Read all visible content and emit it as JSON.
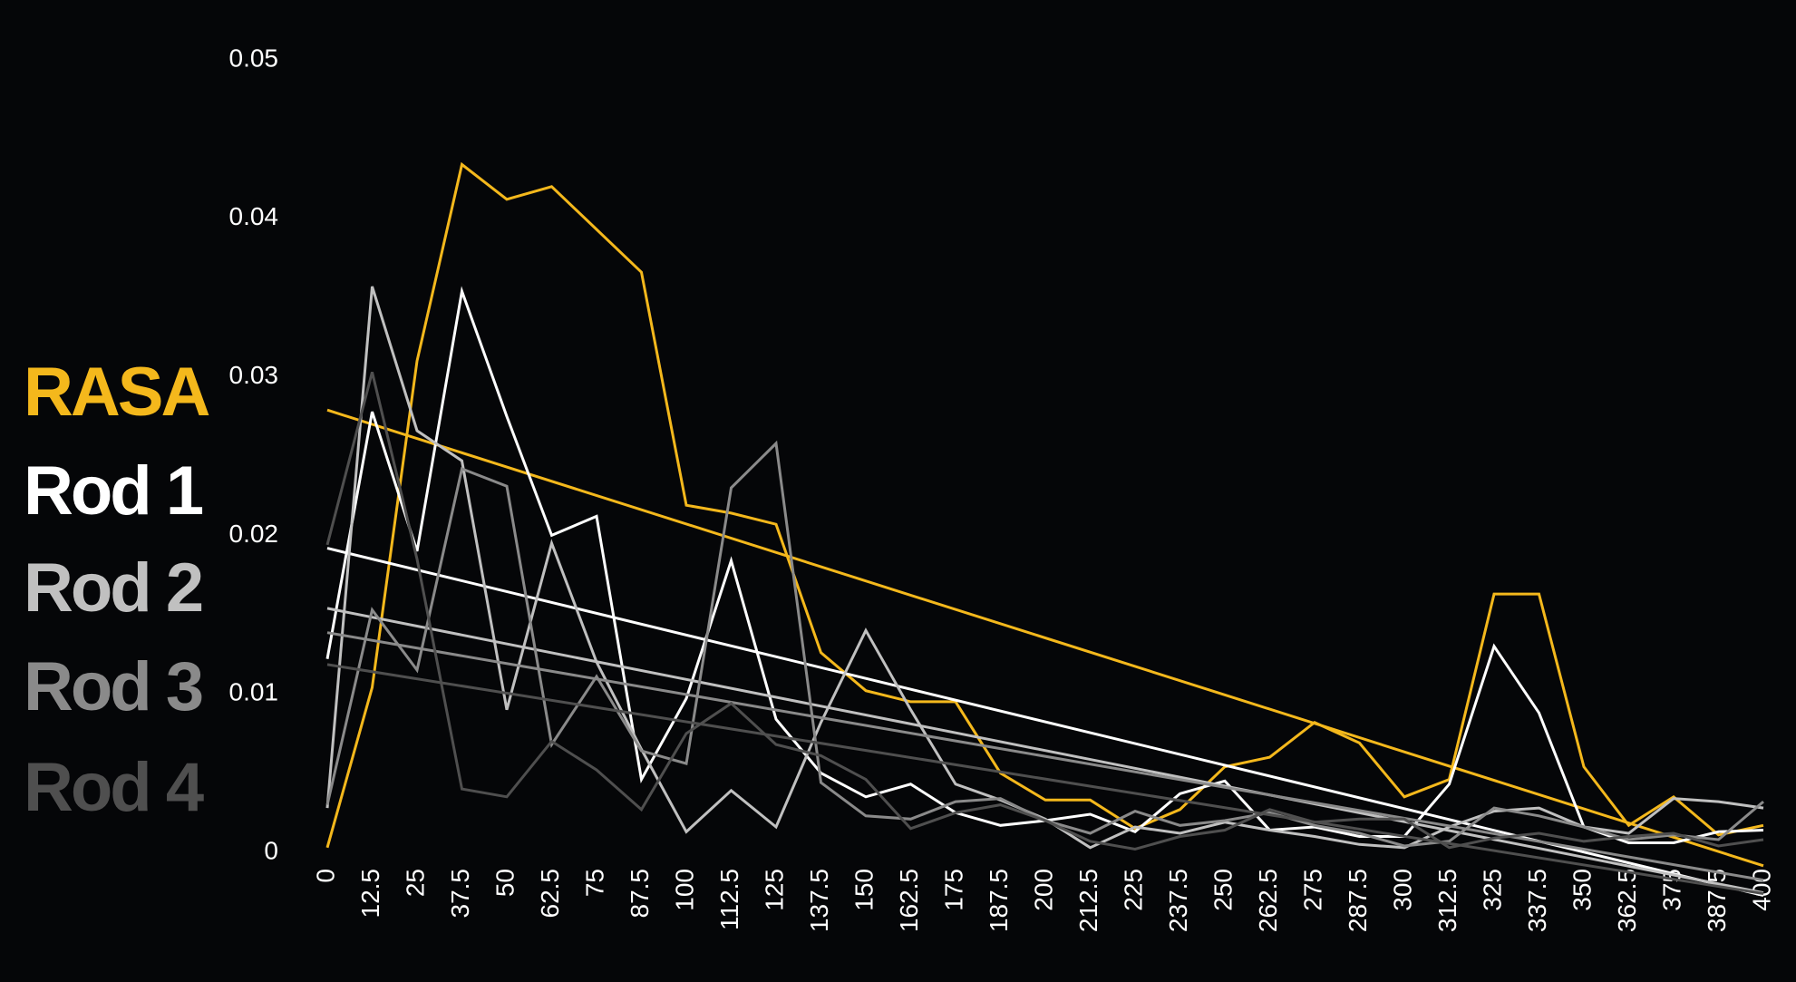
{
  "chart_data": {
    "type": "line",
    "x": [
      0,
      12.5,
      25,
      37.5,
      50,
      62.5,
      75,
      87.5,
      100,
      112.5,
      125,
      137.5,
      150,
      162.5,
      175,
      187.5,
      200,
      212.5,
      225,
      237.5,
      250,
      262.5,
      275,
      287.5,
      300,
      312.5,
      325,
      337.5,
      350,
      362.5,
      375,
      387.5,
      400
    ],
    "xlim": [
      0,
      400
    ],
    "xticks": [
      0,
      12.5,
      25,
      37.5,
      50,
      62.5,
      75,
      87.5,
      100,
      112.5,
      125,
      137.5,
      150,
      162.5,
      175,
      187.5,
      200,
      212.5,
      225,
      237.5,
      250,
      262.5,
      275,
      287.5,
      300,
      312.5,
      325,
      337.5,
      350,
      362.5,
      375,
      387.5,
      400
    ],
    "ylim": [
      0,
      0.05
    ],
    "yticks": [
      0,
      0.01,
      0.02,
      0.03,
      0.04,
      0.05
    ],
    "trendline": true,
    "legend": "left",
    "series": [
      {
        "name": "RASA",
        "color": "#f4b81c",
        "values": [
          0.0003,
          0.0104,
          0.031,
          0.0434,
          0.0412,
          0.042,
          0.0393,
          0.0366,
          0.0219,
          0.0214,
          0.0207,
          0.0126,
          0.0102,
          0.0095,
          0.0095,
          0.005,
          0.0033,
          0.0033,
          0.0015,
          0.0027,
          0.0054,
          0.006,
          0.0082,
          0.0069,
          0.0035,
          0.0046,
          0.0163,
          0.0163,
          0.0054,
          0.0017,
          0.0035,
          0.0011,
          0.0017
        ]
      },
      {
        "name": "Rod 1",
        "color": "#ffffff",
        "values": [
          0.0122,
          0.0278,
          0.019,
          0.0354,
          0.0275,
          0.02,
          0.0212,
          0.0046,
          0.0097,
          0.0184,
          0.0084,
          0.005,
          0.0035,
          0.0043,
          0.0025,
          0.0017,
          0.002,
          0.0024,
          0.0013,
          0.0037,
          0.0045,
          0.0014,
          0.0016,
          0.001,
          0.001,
          0.0043,
          0.013,
          0.0088,
          0.0016,
          0.0006,
          0.0006,
          0.0013,
          0.0014
        ]
      },
      {
        "name": "Rod 2",
        "color": "#c0c0c0",
        "values": [
          0.0028,
          0.0357,
          0.0266,
          0.0247,
          0.009,
          0.0195,
          0.012,
          0.0065,
          0.0013,
          0.0039,
          0.0016,
          0.0082,
          0.014,
          0.009,
          0.0043,
          0.0033,
          0.0021,
          0.0003,
          0.0016,
          0.0012,
          0.0019,
          0.0014,
          0.001,
          0.0005,
          0.0003,
          0.0016,
          0.0026,
          0.0028,
          0.0016,
          0.0012,
          0.0034,
          0.0032,
          0.0028
        ]
      },
      {
        "name": "Rod 3",
        "color": "#8a8a8a",
        "values": [
          0.003,
          0.0153,
          0.0115,
          0.0242,
          0.0231,
          0.0068,
          0.0111,
          0.0064,
          0.0056,
          0.023,
          0.0258,
          0.0044,
          0.0023,
          0.0021,
          0.0032,
          0.0034,
          0.002,
          0.0012,
          0.0026,
          0.0017,
          0.002,
          0.0025,
          0.0017,
          0.0012,
          0.0004,
          0.0007,
          0.0028,
          0.0023,
          0.0016,
          0.0008,
          0.0011,
          0.0008,
          0.0032
        ]
      },
      {
        "name": "Rod 4",
        "color": "#4f4f4f",
        "values": [
          0.0194,
          0.0303,
          0.0185,
          0.004,
          0.0035,
          0.007,
          0.0052,
          0.0027,
          0.0075,
          0.0094,
          0.0068,
          0.0061,
          0.0046,
          0.0015,
          0.0025,
          0.003,
          0.002,
          0.0007,
          0.0002,
          0.001,
          0.0014,
          0.0027,
          0.0019,
          0.0021,
          0.0021,
          0.0003,
          0.0009,
          0.0012,
          0.0007,
          0.001,
          0.0012,
          0.0004,
          0.0008
        ]
      }
    ]
  }
}
